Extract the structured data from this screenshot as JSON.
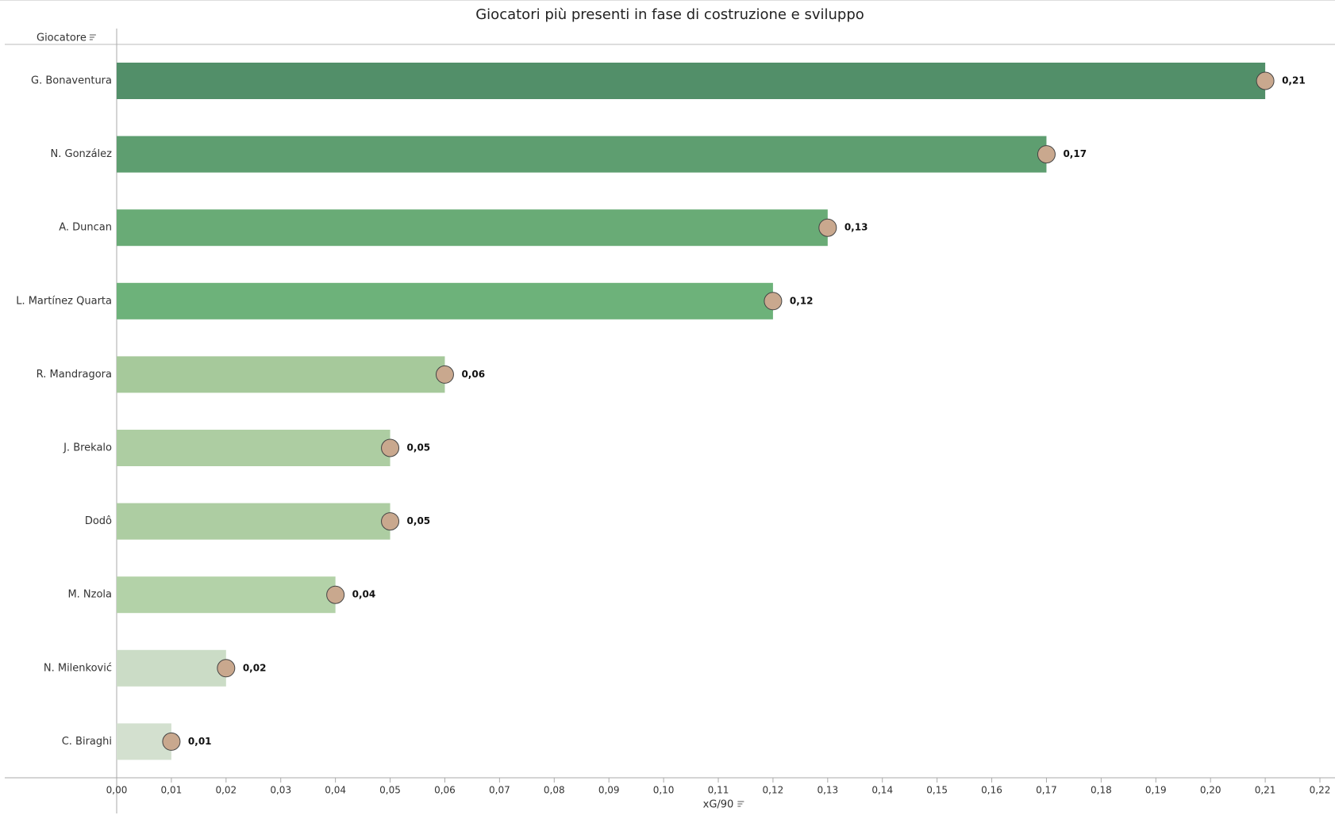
{
  "chart_data": {
    "type": "bar",
    "orientation": "horizontal",
    "title": "Giocatori più presenti in fase di costruzione e sviluppo",
    "y_axis_label": "Giocatore",
    "x_axis_label": "xG/90",
    "categories": [
      "G. Bonaventura",
      "N. González",
      "A. Duncan",
      "L. Martínez Quarta",
      "R. Mandragora",
      "J. Brekalo",
      "Dodô",
      "M. Nzola",
      "N. Milenković",
      "C. Biraghi"
    ],
    "values": [
      0.21,
      0.17,
      0.13,
      0.12,
      0.06,
      0.05,
      0.05,
      0.04,
      0.02,
      0.01
    ],
    "value_labels": [
      "0,21",
      "0,17",
      "0,13",
      "0,12",
      "0,06",
      "0,05",
      "0,05",
      "0,04",
      "0,02",
      "0,01"
    ],
    "colors": [
      "#528f69",
      "#5e9e70",
      "#69ab76",
      "#6db27a",
      "#a6c99b",
      "#adcda2",
      "#adcda2",
      "#b3d2a8",
      "#cbdcc6",
      "#d3e0cf"
    ],
    "xlim": [
      0,
      0.22
    ],
    "xticks": [
      {
        "value": 0,
        "label": "0,00"
      },
      {
        "value": 0.01,
        "label": "0,01"
      },
      {
        "value": 0.02,
        "label": "0,02"
      },
      {
        "value": 0.03,
        "label": "0,03"
      },
      {
        "value": 0.04,
        "label": "0,04"
      },
      {
        "value": 0.05,
        "label": "0,05"
      },
      {
        "value": 0.06,
        "label": "0,06"
      },
      {
        "value": 0.07,
        "label": "0,07"
      },
      {
        "value": 0.08,
        "label": "0,08"
      },
      {
        "value": 0.09,
        "label": "0,09"
      },
      {
        "value": 0.1,
        "label": "0,10"
      },
      {
        "value": 0.11,
        "label": "0,11"
      },
      {
        "value": 0.12,
        "label": "0,12"
      },
      {
        "value": 0.13,
        "label": "0,13"
      },
      {
        "value": 0.14,
        "label": "0,14"
      },
      {
        "value": 0.15,
        "label": "0,15"
      },
      {
        "value": 0.16,
        "label": "0,16"
      },
      {
        "value": 0.17,
        "label": "0,17"
      },
      {
        "value": 0.18,
        "label": "0,18"
      },
      {
        "value": 0.19,
        "label": "0,19"
      },
      {
        "value": 0.2,
        "label": "0,20"
      },
      {
        "value": 0.21,
        "label": "0,21"
      },
      {
        "value": 0.22,
        "label": "0,22"
      }
    ]
  }
}
